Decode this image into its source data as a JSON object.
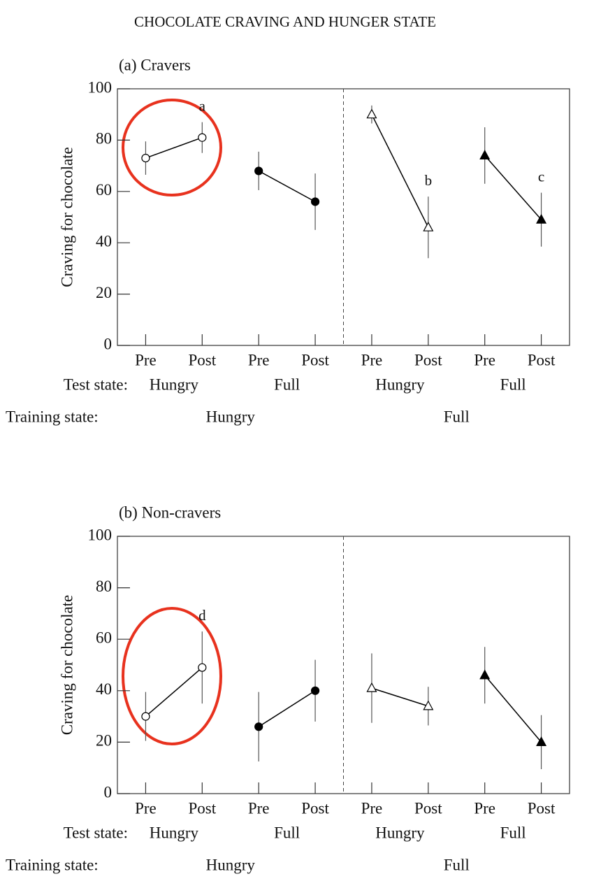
{
  "figure_title": "CHOCOLATE CRAVING AND HUNGER STATE",
  "chart_data": [
    {
      "type": "line",
      "title": "(a) Cravers",
      "y_label": "Craving for chocolate",
      "ylim": [
        0,
        100
      ],
      "yticks": [
        0,
        20,
        40,
        60,
        80,
        100
      ],
      "grid": false,
      "categories": [
        "Pre",
        "Post",
        "Pre",
        "Post",
        "Pre",
        "Post",
        "Pre",
        "Post"
      ],
      "test_state_label": "Test state:",
      "test_states": [
        "Hungry",
        "Full",
        "Hungry",
        "Full"
      ],
      "training_state_label": "Training state:",
      "training_states": [
        "Hungry",
        "Full"
      ],
      "series": [
        {
          "marker": "open-circle",
          "color": "#000000",
          "values": [
            73,
            81,
            null,
            null,
            null,
            null,
            null,
            null
          ],
          "errors": [
            6.5,
            6,
            null,
            null,
            null,
            null,
            null,
            null
          ],
          "annotations": [
            null,
            "a",
            null,
            null,
            null,
            null,
            null,
            null
          ]
        },
        {
          "marker": "filled-circle",
          "color": "#000000",
          "values": [
            null,
            null,
            68,
            56,
            null,
            null,
            null,
            null
          ],
          "errors": [
            null,
            null,
            7.5,
            11,
            null,
            null,
            null,
            null
          ],
          "annotations": [
            null,
            null,
            null,
            null,
            null,
            null,
            null,
            null
          ]
        },
        {
          "marker": "open-triangle",
          "color": "#000000",
          "values": [
            null,
            null,
            null,
            null,
            90,
            46,
            null,
            null
          ],
          "errors": [
            null,
            null,
            null,
            null,
            3.5,
            12,
            null,
            null
          ],
          "annotations": [
            null,
            null,
            null,
            null,
            null,
            "b",
            null,
            null
          ]
        },
        {
          "marker": "filled-triangle",
          "color": "#000000",
          "values": [
            null,
            null,
            null,
            null,
            null,
            null,
            74,
            49
          ],
          "errors": [
            null,
            null,
            null,
            null,
            null,
            null,
            11,
            10.5
          ],
          "annotations": [
            null,
            null,
            null,
            null,
            null,
            null,
            null,
            "c"
          ]
        }
      ]
    },
    {
      "type": "line",
      "title": "(b) Non-cravers",
      "y_label": "Craving for chocolate",
      "ylim": [
        0,
        100
      ],
      "yticks": [
        0,
        20,
        40,
        60,
        80,
        100
      ],
      "grid": false,
      "categories": [
        "Pre",
        "Post",
        "Pre",
        "Post",
        "Pre",
        "Post",
        "Pre",
        "Post"
      ],
      "test_state_label": "Test state:",
      "test_states": [
        "Hungry",
        "Full",
        "Hungry",
        "Full"
      ],
      "training_state_label": "Training state:",
      "training_states": [
        "Hungry",
        "Full"
      ],
      "series": [
        {
          "marker": "open-circle",
          "color": "#000000",
          "values": [
            30,
            49,
            null,
            null,
            null,
            null,
            null,
            null
          ],
          "errors": [
            9.5,
            14,
            null,
            null,
            null,
            null,
            null,
            null
          ],
          "annotations": [
            null,
            "d",
            null,
            null,
            null,
            null,
            null,
            null
          ]
        },
        {
          "marker": "filled-circle",
          "color": "#000000",
          "values": [
            null,
            null,
            26,
            40,
            null,
            null,
            null,
            null
          ],
          "errors": [
            null,
            null,
            13.5,
            12,
            null,
            null,
            null,
            null
          ],
          "annotations": [
            null,
            null,
            null,
            null,
            null,
            null,
            null,
            null
          ]
        },
        {
          "marker": "open-triangle",
          "color": "#000000",
          "values": [
            null,
            null,
            null,
            null,
            41,
            34,
            null,
            null
          ],
          "errors": [
            null,
            null,
            null,
            null,
            13.5,
            7.5,
            null,
            null
          ],
          "annotations": [
            null,
            null,
            null,
            null,
            null,
            null,
            null,
            null
          ]
        },
        {
          "marker": "filled-triangle",
          "color": "#000000",
          "values": [
            null,
            null,
            null,
            null,
            null,
            null,
            46,
            20
          ],
          "errors": [
            null,
            null,
            null,
            null,
            null,
            null,
            11,
            10.5
          ],
          "annotations": [
            null,
            null,
            null,
            null,
            null,
            null,
            null,
            null
          ]
        }
      ]
    }
  ]
}
